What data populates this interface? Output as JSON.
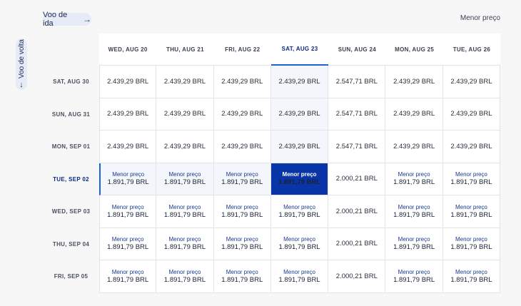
{
  "outbound_label": "Voo de ida",
  "return_label": "Voo de volta",
  "top_right_label": "Menor preço",
  "icons": {
    "outbound": "arrow-right-icon",
    "return": "arrow-down-icon"
  },
  "colors": {
    "accent": "#0a35a8",
    "highlight": "#f3f6fb"
  },
  "columns": [
    "WED, AUG 20",
    "THU, AUG 21",
    "FRI, AUG 22",
    "SAT, AUG 23",
    "SUN, AUG 24",
    "MON, AUG 25",
    "TUE, AUG 26"
  ],
  "selected_column": 3,
  "selected_row": 3,
  "rows": [
    {
      "date": "SAT, AUG 30",
      "cells": [
        {
          "price": "2.439,29 BRL"
        },
        {
          "price": "2.439,29 BRL"
        },
        {
          "price": "2.439,29 BRL"
        },
        {
          "price": "2.439,29 BRL"
        },
        {
          "price": "2.547,71 BRL"
        },
        {
          "price": "2.439,29 BRL"
        },
        {
          "price": "2.439,29 BRL"
        }
      ]
    },
    {
      "date": "SUN, AUG 31",
      "cells": [
        {
          "price": "2.439,29 BRL"
        },
        {
          "price": "2.439,29 BRL"
        },
        {
          "price": "2.439,29 BRL"
        },
        {
          "price": "2.439,29 BRL"
        },
        {
          "price": "2.547,71 BRL"
        },
        {
          "price": "2.439,29 BRL"
        },
        {
          "price": "2.439,29 BRL"
        }
      ]
    },
    {
      "date": "MON, SEP 01",
      "cells": [
        {
          "price": "2.439,29 BRL"
        },
        {
          "price": "2.439,29 BRL"
        },
        {
          "price": "2.439,29 BRL"
        },
        {
          "price": "2.439,29 BRL"
        },
        {
          "price": "2.547,71 BRL"
        },
        {
          "price": "2.439,29 BRL"
        },
        {
          "price": "2.439,29 BRL"
        }
      ]
    },
    {
      "date": "TUE, SEP 02",
      "cells": [
        {
          "label": "Menor preço",
          "price": "1.891,79 BRL"
        },
        {
          "label": "Menor preço",
          "price": "1.891,79 BRL"
        },
        {
          "label": "Menor preço",
          "price": "1.891,79 BRL"
        },
        {
          "label": "Menor preço",
          "price": "1.891,79 BRL"
        },
        {
          "price": "2.000,21 BRL"
        },
        {
          "label": "Menor preço",
          "price": "1.891,79 BRL"
        },
        {
          "label": "Menor preço",
          "price": "1.891,79 BRL"
        }
      ]
    },
    {
      "date": "WED, SEP 03",
      "cells": [
        {
          "label": "Menor preço",
          "price": "1.891,79 BRL"
        },
        {
          "label": "Menor preço",
          "price": "1.891,79 BRL"
        },
        {
          "label": "Menor preço",
          "price": "1.891,79 BRL"
        },
        {
          "label": "Menor preço",
          "price": "1.891,79 BRL"
        },
        {
          "price": "2.000,21 BRL"
        },
        {
          "label": "Menor preço",
          "price": "1.891,79 BRL"
        },
        {
          "label": "Menor preço",
          "price": "1.891,79 BRL"
        }
      ]
    },
    {
      "date": "THU, SEP 04",
      "cells": [
        {
          "label": "Menor preço",
          "price": "1.891,79 BRL"
        },
        {
          "label": "Menor preço",
          "price": "1.891,79 BRL"
        },
        {
          "label": "Menor preço",
          "price": "1.891,79 BRL"
        },
        {
          "label": "Menor preço",
          "price": "1.891,79 BRL"
        },
        {
          "price": "2.000,21 BRL"
        },
        {
          "label": "Menor preço",
          "price": "1.891,79 BRL"
        },
        {
          "label": "Menor preço",
          "price": "1.891,79 BRL"
        }
      ]
    },
    {
      "date": "FRI, SEP 05",
      "cells": [
        {
          "label": "Menor preço",
          "price": "1.891,79 BRL"
        },
        {
          "label": "Menor preço",
          "price": "1.891,79 BRL"
        },
        {
          "label": "Menor preço",
          "price": "1.891,79 BRL"
        },
        {
          "label": "Menor preço",
          "price": "1.891,79 BRL"
        },
        {
          "price": "2.000,21 BRL"
        },
        {
          "label": "Menor preço",
          "price": "1.891,79 BRL"
        },
        {
          "label": "Menor preço",
          "price": "1.891,79 BRL"
        }
      ]
    }
  ]
}
